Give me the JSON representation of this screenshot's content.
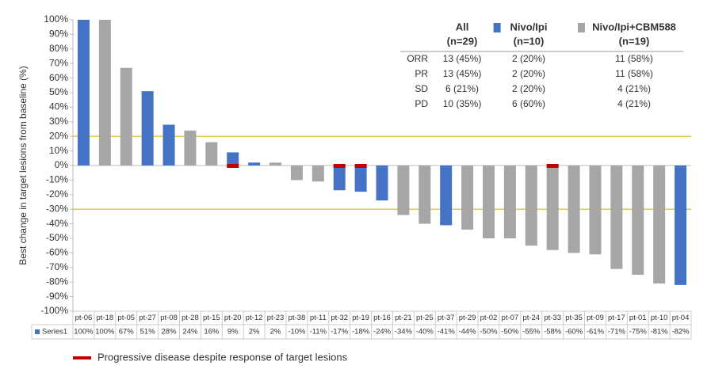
{
  "chart_data": {
    "type": "waterfall",
    "y_label": "Best change in target lesions from baseline (%)",
    "categories": [
      "pt-06",
      "pt-18",
      "pt-05",
      "pt-27",
      "pt-08",
      "pt-28",
      "pt-15",
      "pt-20",
      "pt-12",
      "pt-23",
      "pt-38",
      "pt-11",
      "pt-32",
      "pt-19",
      "pt-16",
      "pt-21",
      "pt-25",
      "pt-37",
      "pt-29",
      "pt-02",
      "pt-07",
      "pt-24",
      "pt-33",
      "pt-35",
      "pt-09",
      "pt-17",
      "pt-01",
      "pt-10",
      "pt-04"
    ],
    "series": [
      {
        "name": "Series1",
        "color": "#4472c4",
        "values": [
          100,
          100,
          67,
          51,
          28,
          24,
          16,
          9,
          2,
          2,
          -10,
          -11,
          -17,
          -18,
          -24,
          -34,
          -40,
          -41,
          -44,
          -50,
          -50,
          -55,
          -58,
          -60,
          -61,
          -71,
          -75,
          -81,
          -82
        ],
        "value_labels": [
          "100%",
          "100%",
          "67%",
          "51%",
          "28%",
          "24%",
          "16%",
          "9%",
          "2%",
          "2%",
          "-10%",
          "-11%",
          "-17%",
          "-18%",
          "-24%",
          "-34%",
          "-40%",
          "-41%",
          "-44%",
          "-50%",
          "-50%",
          "-55%",
          "-58%",
          "-60%",
          "-61%",
          "-71%",
          "-75%",
          "-81%",
          "-82%"
        ],
        "colors": [
          "#4472c4",
          "#a6a6a6",
          "#a6a6a6",
          "#4472c4",
          "#4472c4",
          "#a6a6a6",
          "#a6a6a6",
          "#4472c4",
          "#4472c4",
          "#a6a6a6",
          "#a6a6a6",
          "#a6a6a6",
          "#4472c4",
          "#4472c4",
          "#4472c4",
          "#a6a6a6",
          "#a6a6a6",
          "#4472c4",
          "#a6a6a6",
          "#a6a6a6",
          "#a6a6a6",
          "#a6a6a6",
          "#a6a6a6",
          "#a6a6a6",
          "#a6a6a6",
          "#a6a6a6",
          "#a6a6a6",
          "#a6a6a6",
          "#4472c4"
        ],
        "progressive_disease": [
          false,
          false,
          false,
          false,
          false,
          false,
          false,
          true,
          false,
          false,
          false,
          false,
          true,
          true,
          false,
          false,
          false,
          false,
          false,
          false,
          false,
          false,
          true,
          false,
          false,
          false,
          false,
          false,
          false
        ]
      }
    ],
    "progressive_disease_legend": {
      "label": "Progressive disease despite response of target lesions",
      "color": "#c00000"
    },
    "ylim": [
      -100,
      100
    ],
    "yticks": [
      {
        "value": 100,
        "label": "100%"
      },
      {
        "value": 90,
        "label": "90%"
      },
      {
        "value": 80,
        "label": "80%"
      },
      {
        "value": 70,
        "label": "70%"
      },
      {
        "value": 60,
        "label": "60%"
      },
      {
        "value": 50,
        "label": "50%"
      },
      {
        "value": 40,
        "label": "40%"
      },
      {
        "value": 30,
        "label": "30%"
      },
      {
        "value": 20,
        "label": "20%"
      },
      {
        "value": 10,
        "label": "10%"
      },
      {
        "value": 0,
        "label": "0%"
      },
      {
        "value": -10,
        "label": "-10%"
      },
      {
        "value": -20,
        "label": "-20%"
      },
      {
        "value": -30,
        "label": "-30%"
      },
      {
        "value": -40,
        "label": "-40%"
      },
      {
        "value": -50,
        "label": "-50%"
      },
      {
        "value": -60,
        "label": "-60%"
      },
      {
        "value": -70,
        "label": "-70%"
      },
      {
        "value": -80,
        "label": "-80%"
      },
      {
        "value": -90,
        "label": "-90%"
      },
      {
        "value": -100,
        "label": "-100%"
      }
    ],
    "reference_lines": [
      20,
      -30
    ],
    "reference_color": "#e6c229",
    "summary_table": {
      "columns": [
        {
          "name": "All",
          "n": "(n=29)"
        },
        {
          "name": "Nivo/Ipi",
          "n": "(n=10)",
          "color": "#4472c4"
        },
        {
          "name": "Nivo/Ipi+CBM588",
          "n": "(n=19)",
          "color": "#a6a6a6"
        }
      ],
      "rows": [
        [
          "ORR",
          "13 (45%)",
          "2 (20%)",
          "11 (58%)"
        ],
        [
          "PR",
          "13 (45%)",
          "2 (20%)",
          "11 (58%)"
        ],
        [
          "SD",
          "6 (21%)",
          "2 (20%)",
          "4 (21%)"
        ],
        [
          "PD",
          "10 (35%)",
          "6 (60%)",
          "4 (21%)"
        ]
      ]
    }
  }
}
